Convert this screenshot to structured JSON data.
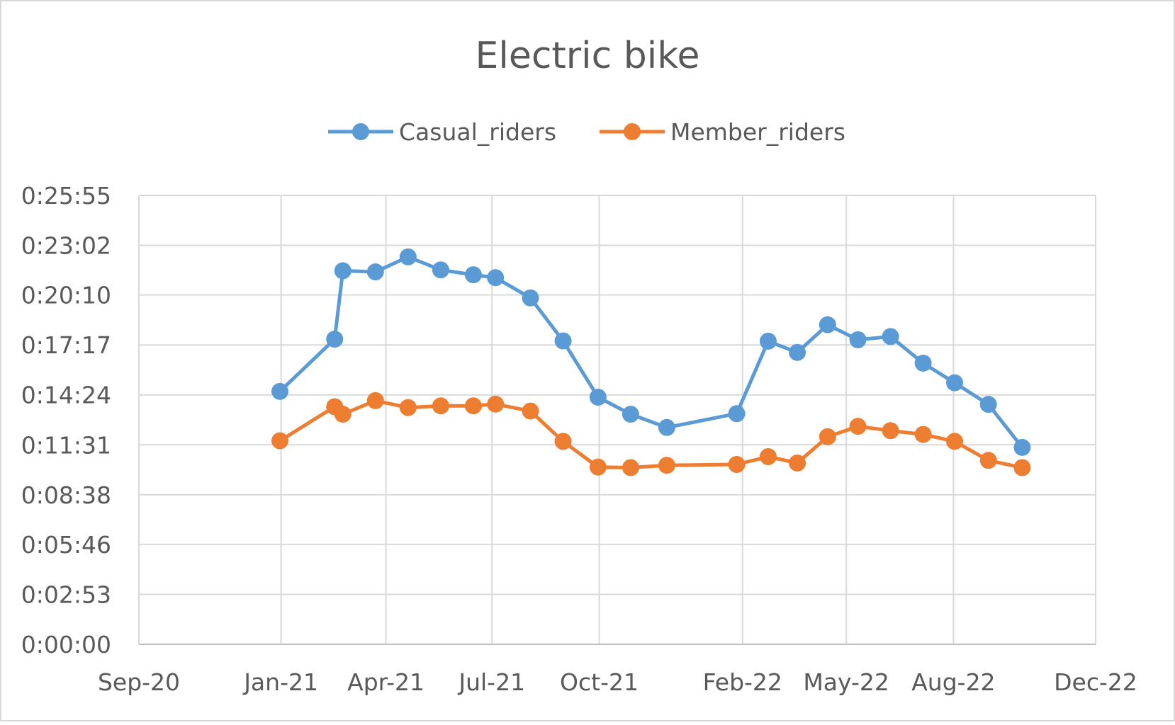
{
  "chart_data": {
    "type": "line",
    "title": "Electric bike",
    "xlabel": "",
    "ylabel": "",
    "legend_position": "top",
    "grid": true,
    "x_tick_labels": [
      "Sep-20",
      "Jan-21",
      "Apr-21",
      "Jul-21",
      "Oct-21",
      "Feb-22",
      "May-22",
      "Aug-22",
      "Dec-22"
    ],
    "x_tick_dates": [
      "2020-09-01",
      "2021-01-01",
      "2021-04-01",
      "2021-07-01",
      "2021-10-01",
      "2022-02-01",
      "2022-05-01",
      "2022-08-01",
      "2022-12-01"
    ],
    "xlim": [
      "2020-09-01",
      "2022-12-01"
    ],
    "y_tick_labels": [
      "0:00:00",
      "0:02:53",
      "0:05:46",
      "0:08:38",
      "0:11:31",
      "0:14:24",
      "0:17:17",
      "0:20:10",
      "0:23:02",
      "0:25:55"
    ],
    "y_tick_seconds": [
      0,
      173,
      346,
      518,
      691,
      864,
      1037,
      1210,
      1382,
      1555
    ],
    "ylim_seconds": [
      0,
      1555
    ],
    "series": [
      {
        "name": "Casual_riders",
        "color": "#5B9BD5",
        "x": [
          "2020-12-31",
          "2021-02-16",
          "2021-02-23",
          "2021-03-23",
          "2021-04-20",
          "2021-05-18",
          "2021-06-15",
          "2021-07-04",
          "2021-08-03",
          "2021-08-31",
          "2021-09-30",
          "2021-10-28",
          "2021-11-28",
          "2022-01-27",
          "2022-02-23",
          "2022-03-20",
          "2022-04-15",
          "2022-05-11",
          "2022-06-08",
          "2022-07-06",
          "2022-08-02",
          "2022-08-31",
          "2022-09-29"
        ],
        "y_seconds": [
          876,
          1057,
          1294,
          1290,
          1342,
          1297,
          1280,
          1270,
          1200,
          1051,
          856,
          797,
          751,
          799,
          1050,
          1011,
          1107,
          1055,
          1066,
          974,
          906,
          831,
          682
        ]
      },
      {
        "name": "Member_riders",
        "color": "#ED7D31",
        "x": [
          "2020-12-31",
          "2021-02-16",
          "2021-02-23",
          "2021-03-23",
          "2021-04-20",
          "2021-05-18",
          "2021-06-15",
          "2021-07-04",
          "2021-08-03",
          "2021-08-31",
          "2021-09-30",
          "2021-10-28",
          "2021-11-28",
          "2022-01-27",
          "2022-02-23",
          "2022-03-20",
          "2022-04-15",
          "2022-05-11",
          "2022-06-08",
          "2022-07-06",
          "2022-08-02",
          "2022-08-31",
          "2022-09-29"
        ],
        "y_seconds": [
          705,
          823,
          797,
          844,
          820,
          826,
          826,
          832,
          808,
          703,
          614,
          612,
          620,
          623,
          650,
          628,
          719,
          755,
          740,
          727,
          703,
          637,
          612
        ]
      }
    ]
  }
}
